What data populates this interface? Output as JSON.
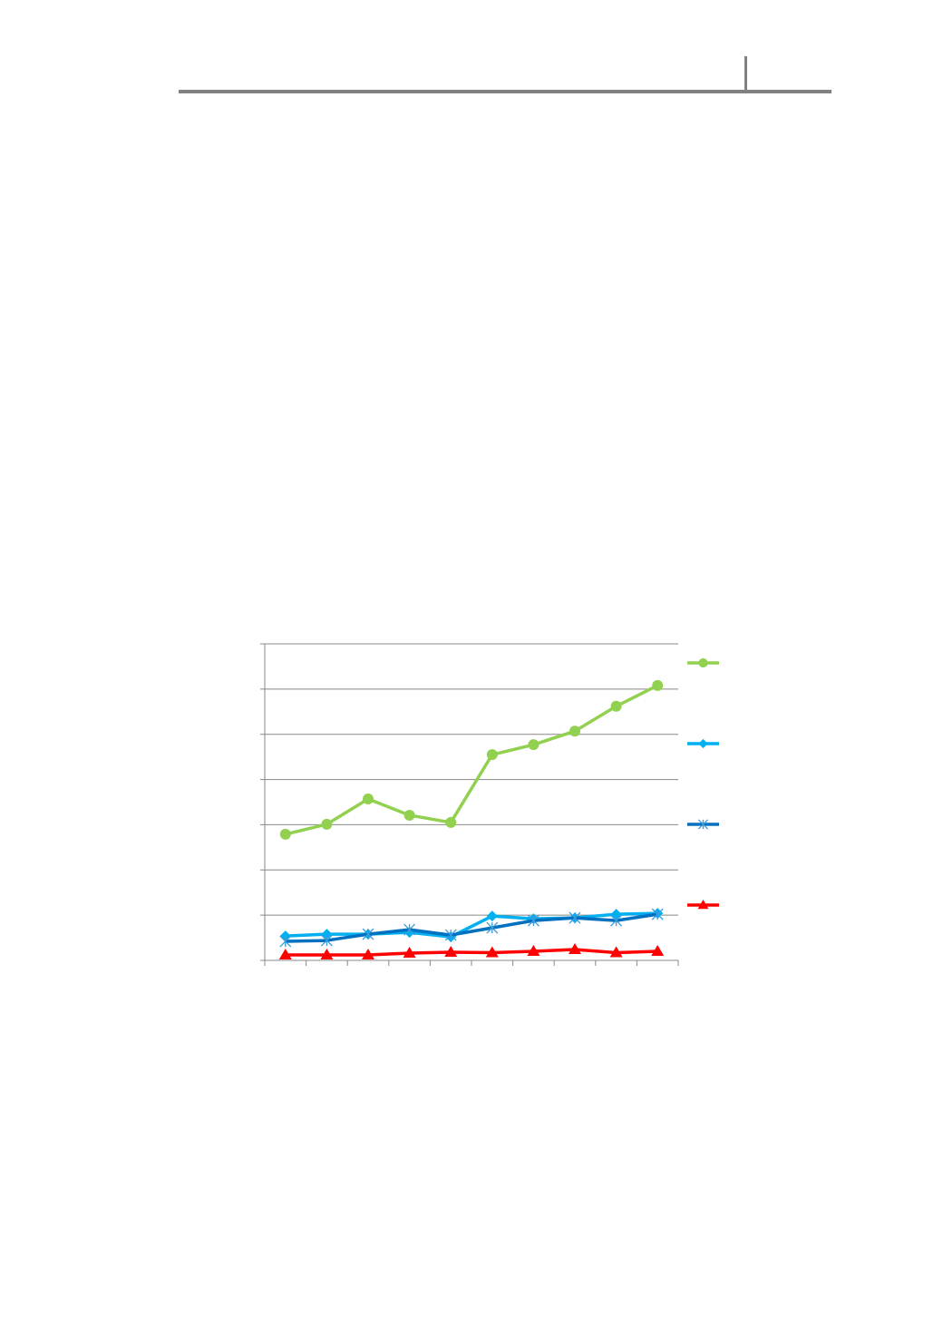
{
  "header": {
    "rule_color": "#808080"
  },
  "chart_data": {
    "type": "line",
    "title": "",
    "xlabel": "",
    "ylabel": "",
    "categories": [
      "",
      "",
      "",
      "",
      "",
      "",
      "",
      "",
      "",
      ""
    ],
    "ylim": [
      0,
      7
    ],
    "grid": true,
    "legend": "right",
    "series": [
      {
        "color": "#92D050",
        "marker": "circle",
        "values": [
          2.79,
          3.01,
          3.57,
          3.21,
          3.05,
          4.55,
          4.77,
          5.07,
          5.62,
          6.08
        ]
      },
      {
        "color": "#00B0F0",
        "marker": "diamond",
        "values": [
          0.54,
          0.58,
          0.58,
          0.62,
          0.52,
          0.98,
          0.92,
          0.94,
          1.02,
          1.04
        ]
      },
      {
        "color": "#0070C0",
        "marker": "asterisk",
        "values": [
          0.42,
          0.44,
          0.58,
          0.68,
          0.56,
          0.72,
          0.88,
          0.94,
          0.88,
          1.02
        ]
      },
      {
        "color": "#FF0000",
        "marker": "triangle",
        "values": [
          0.12,
          0.12,
          0.12,
          0.16,
          0.18,
          0.17,
          0.2,
          0.24,
          0.17,
          0.2
        ]
      }
    ]
  }
}
